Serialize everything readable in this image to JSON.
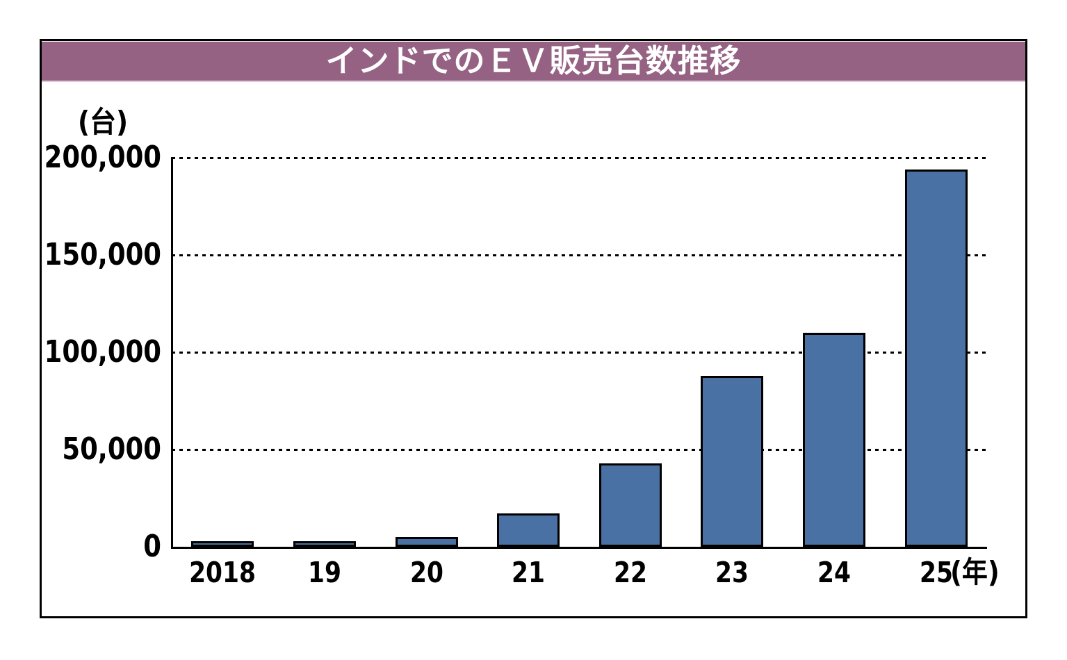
{
  "figure": {
    "title": "インドでのＥＶ販売台数推移",
    "unit_label": "(台)",
    "x_suffix": "(年)"
  },
  "colors": {
    "title_bg": "#966284",
    "title_text": "#ffffff",
    "bar_fill": "#4a71a3",
    "bar_border": "#000000",
    "axis": "#000000",
    "gridline": "#000000",
    "frame_border": "#000000"
  },
  "chart_data": {
    "type": "bar",
    "title": "インドでのＥＶ販売台数推移",
    "categories": [
      "2018",
      "19",
      "20",
      "21",
      "22",
      "23",
      "24",
      "25"
    ],
    "values": [
      3000,
      3000,
      5000,
      17000,
      43000,
      88000,
      110000,
      194000
    ],
    "ylabel": "(台)",
    "xlabel": "(年)",
    "ylim": [
      0,
      200000
    ],
    "yticks": [
      0,
      50000,
      100000,
      150000,
      200000
    ],
    "ytick_labels": [
      "0",
      "50,000",
      "100,000",
      "150,000",
      "200,000"
    ],
    "grid": "horizontal-dotted",
    "legend": "none"
  }
}
